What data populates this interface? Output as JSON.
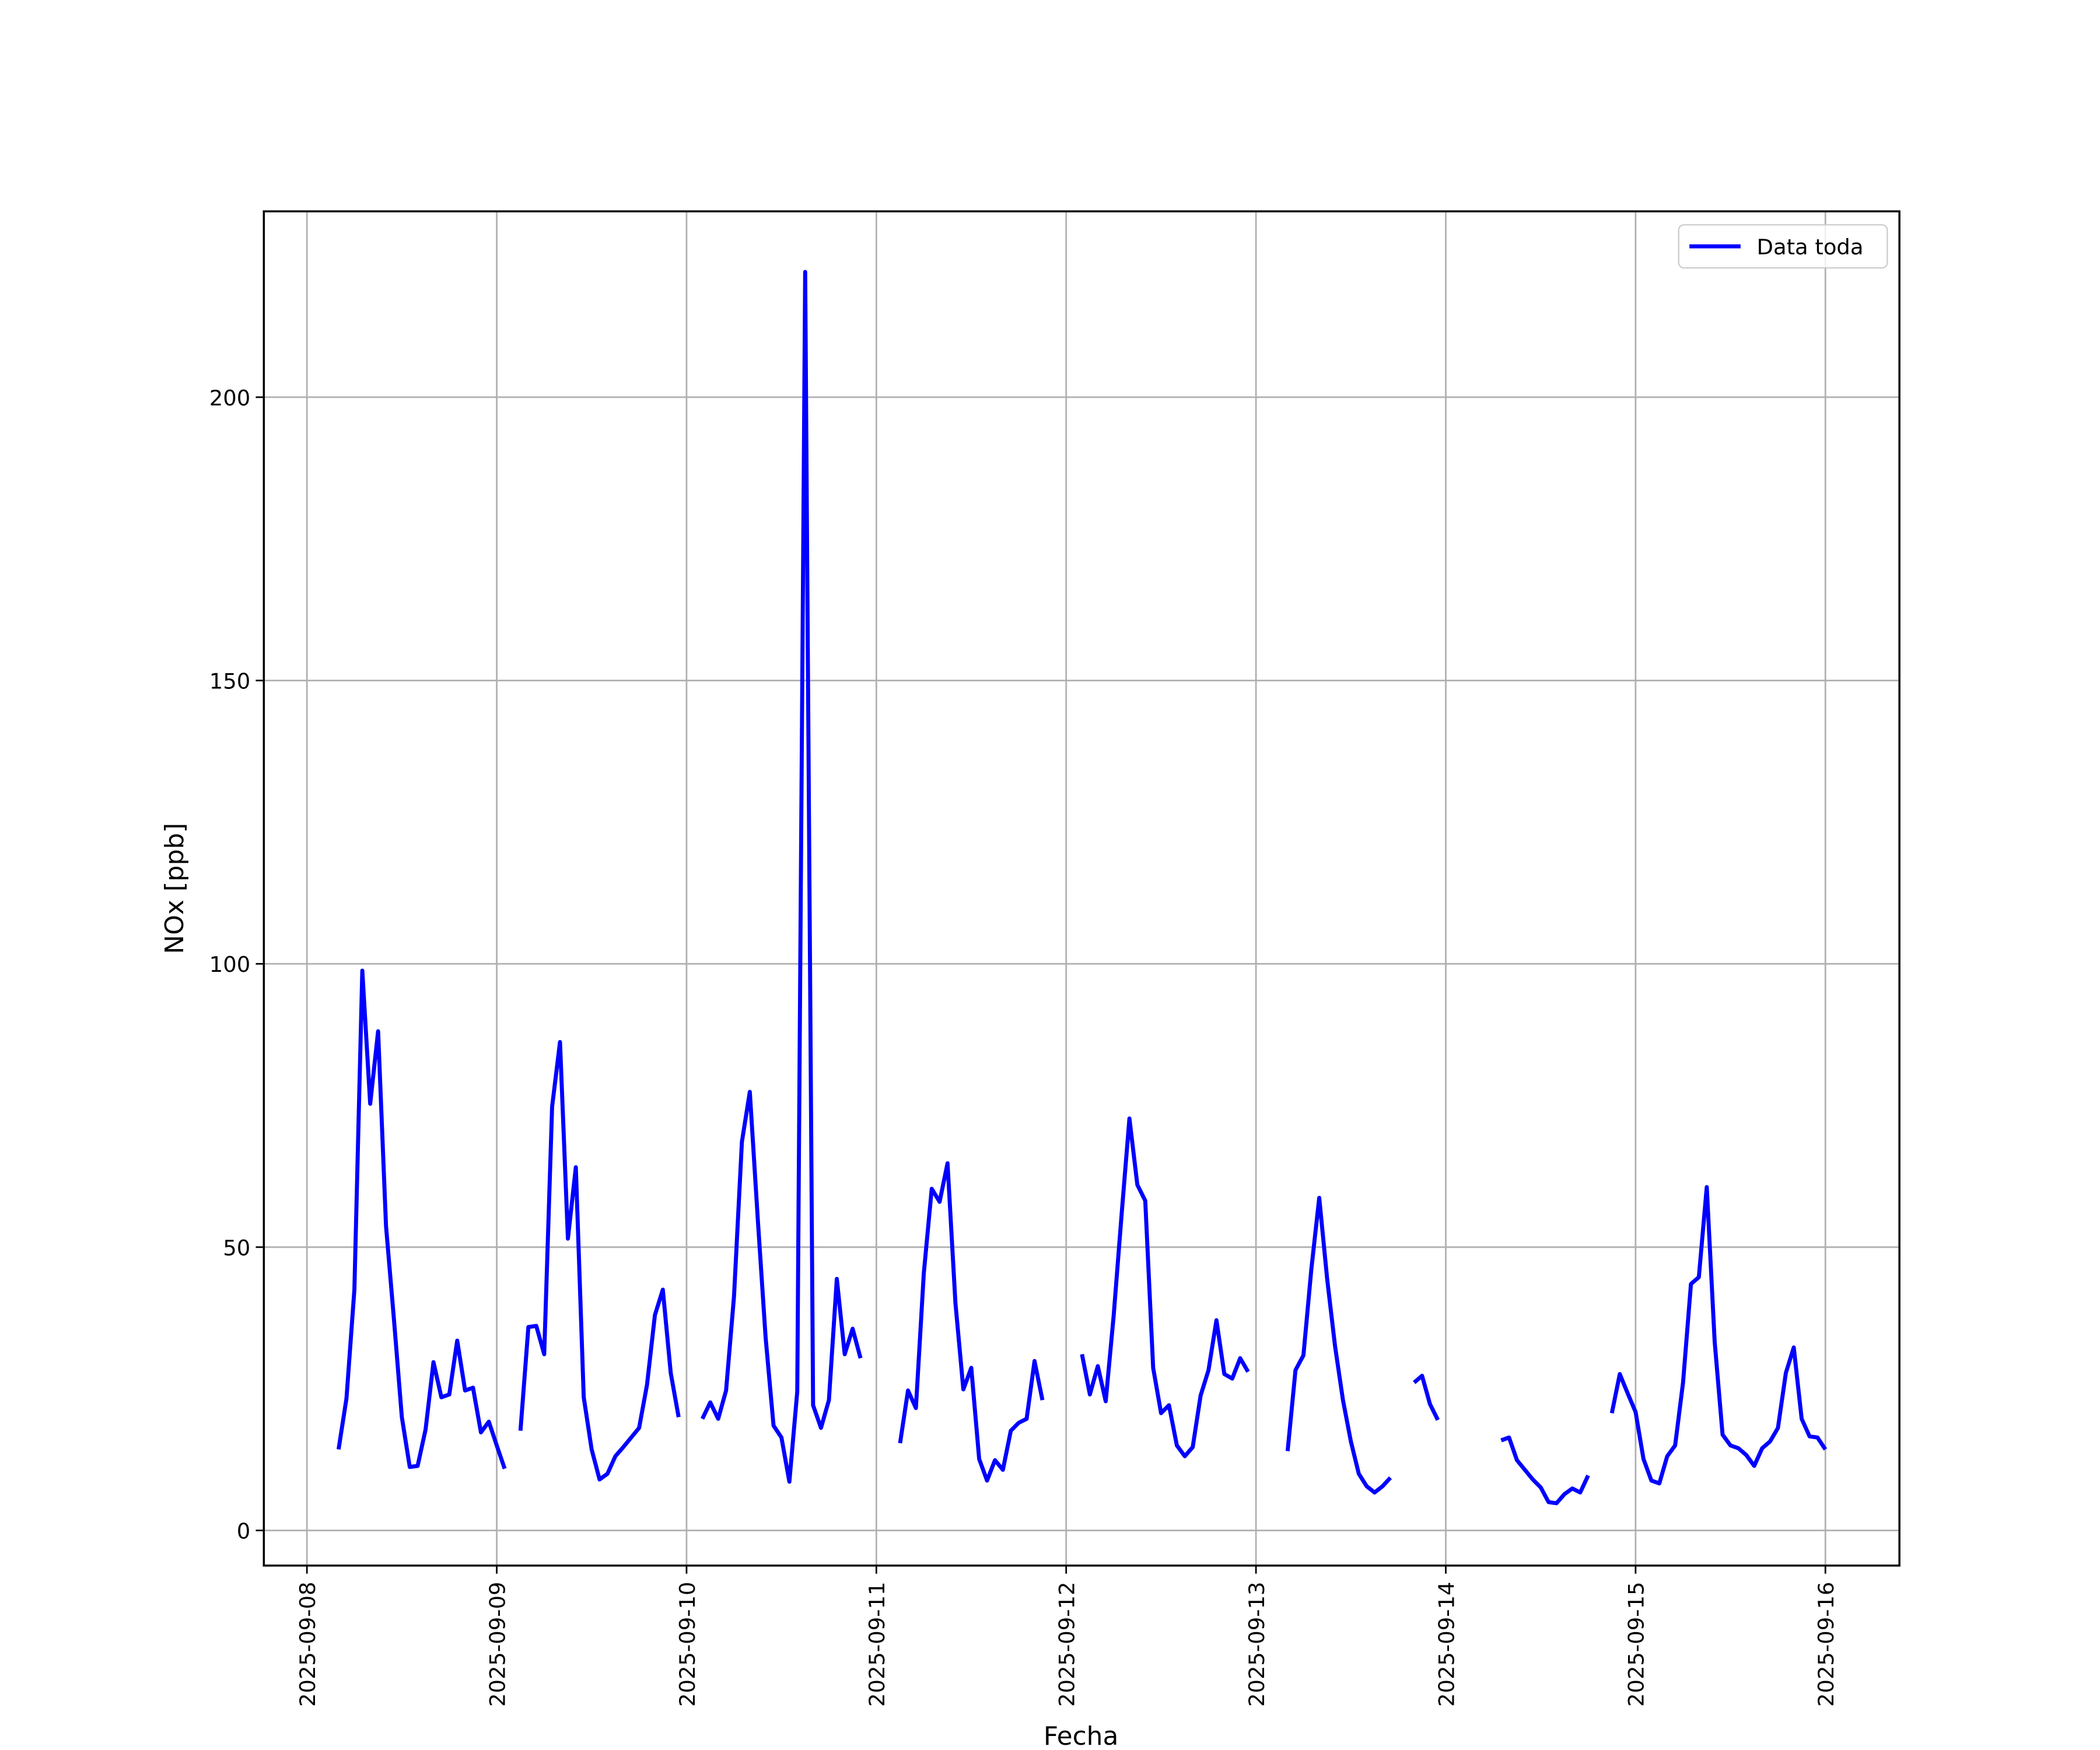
{
  "chart_data": {
    "type": "line",
    "xlabel": "Fecha",
    "ylabel": "NOx [ppb]",
    "xlim": [
      -0.227,
      8.39
    ],
    "ylim": [
      -6.2,
      232.8
    ],
    "xticks": [
      {
        "value": 0,
        "label": "2025-09-08"
      },
      {
        "value": 1,
        "label": "2025-09-09"
      },
      {
        "value": 2,
        "label": "2025-09-10"
      },
      {
        "value": 3,
        "label": "2025-09-11"
      },
      {
        "value": 4,
        "label": "2025-09-12"
      },
      {
        "value": 5,
        "label": "2025-09-13"
      },
      {
        "value": 6,
        "label": "2025-09-14"
      },
      {
        "value": 7,
        "label": "2025-09-15"
      },
      {
        "value": 8,
        "label": "2025-09-16"
      }
    ],
    "yticks": [
      0,
      50,
      100,
      150,
      200
    ],
    "grid": true,
    "legend": "upper right",
    "x": [
      0.1667,
      0.2083,
      0.25,
      0.2917,
      0.3333,
      0.375,
      0.4167,
      0.4583,
      0.5,
      0.5417,
      0.5833,
      0.625,
      0.6667,
      0.7083,
      0.75,
      0.7917,
      0.8333,
      0.875,
      0.9167,
      0.9583,
      1,
      1.0417,
      1.0833,
      1.125,
      1.1667,
      1.2083,
      1.25,
      1.2917,
      1.3333,
      1.375,
      1.4167,
      1.4583,
      1.5,
      1.5417,
      1.5833,
      1.625,
      1.6667,
      1.7083,
      1.75,
      1.7917,
      1.8333,
      1.875,
      1.9167,
      1.9583,
      2,
      2.0833,
      2.125,
      2.1667,
      2.2083,
      2.25,
      2.2917,
      2.3333,
      2.375,
      2.4167,
      2.4583,
      2.5,
      2.5417,
      2.5833,
      2.625,
      2.6667,
      2.7083,
      2.75,
      2.7917,
      2.8333,
      2.875,
      2.9167,
      2.9583,
      3.125,
      3.1667,
      3.2083,
      3.25,
      3.2917,
      3.3333,
      3.375,
      3.4167,
      3.4583,
      3.5,
      3.5417,
      3.5833,
      3.625,
      3.6667,
      3.7083,
      3.75,
      3.7917,
      3.8333,
      3.875,
      3.9167,
      4.0833,
      4.125,
      4.1667,
      4.2083,
      4.25,
      4.2917,
      4.3333,
      4.375,
      4.4167,
      4.4583,
      4.5,
      4.5417,
      4.5833,
      4.625,
      4.6667,
      4.7083,
      4.75,
      4.7917,
      4.8333,
      4.875,
      4.9167,
      4.9583,
      5,
      5.1667,
      5.2083,
      5.25,
      5.2917,
      5.3333,
      5.375,
      5.4167,
      5.4583,
      5.5,
      5.5417,
      5.5833,
      5.625,
      5.6667,
      5.7083,
      5.75,
      5.8333,
      5.875,
      5.9167,
      5.9583,
      6,
      6.2917,
      6.3333,
      6.375,
      6.4167,
      6.4583,
      6.5,
      6.5417,
      6.5833,
      6.625,
      6.6667,
      6.7083,
      6.75,
      6.7917,
      6.875,
      6.9167,
      6.9583,
      7,
      7.0417,
      7.0833,
      7.125,
      7.1667,
      7.2083,
      7.25,
      7.2917,
      7.3333,
      7.375,
      7.4167,
      7.4583,
      7.5,
      7.5417,
      7.5833,
      7.625,
      7.6667,
      7.7083,
      7.75,
      7.7917,
      7.8333,
      7.875,
      7.9167,
      7.9583,
      8
    ],
    "series": [
      {
        "name": "Data toda",
        "color": "#0000ff",
        "values": [
          14.3,
          23.3,
          42.5,
          98.8,
          75.3,
          88.1,
          53.7,
          37.3,
          20,
          11.2,
          11.4,
          17.8,
          29.7,
          23.5,
          24,
          33.5,
          24.7,
          25.2,
          17.3,
          19.2,
          15,
          10.9,
          null,
          17.6,
          35.9,
          36.1,
          31.1,
          74.8,
          86.2,
          51.5,
          64.1,
          23.5,
          14.3,
          9,
          10,
          13.1,
          14.7,
          16.4,
          18.1,
          25.7,
          38,
          42.5,
          27.8,
          20,
          null,
          19.7,
          22.6,
          19.7,
          24.7,
          41.3,
          68.6,
          77.4,
          55.1,
          34,
          18.5,
          16.4,
          8.6,
          24.5,
          222.1,
          22.1,
          18.1,
          23,
          44.4,
          31.1,
          35.6,
          30.4,
          null,
          15.4,
          24.7,
          21.6,
          45.4,
          60.3,
          58,
          64.8,
          40.1,
          24.9,
          28.7,
          12.6,
          8.8,
          12.4,
          10.7,
          17.6,
          19,
          19.7,
          29.9,
          23,
          null,
          31.1,
          24,
          29,
          22.8,
          37.8,
          55.6,
          72.7,
          61,
          58.2,
          28.7,
          20.7,
          22.1,
          15,
          13.1,
          14.7,
          23.8,
          28.3,
          37.1,
          27.6,
          26.8,
          30.4,
          28,
          null,
          14,
          28.3,
          30.9,
          46.1,
          58.7,
          44.4,
          32.5,
          23,
          15.7,
          10,
          7.8,
          6.7,
          7.8,
          9.3,
          null,
          26.1,
          27.3,
          22.3,
          19.5,
          null,
          15.9,
          16.4,
          12.4,
          10.7,
          9,
          7.6,
          5,
          4.8,
          6.4,
          7.4,
          6.7,
          9.7,
          null,
          20.7,
          27.6,
          24.2,
          20.9,
          12.6,
          8.8,
          8.3,
          13.1,
          15,
          26.1,
          43.5,
          44.7,
          60.6,
          33.3,
          16.9,
          15,
          14.5,
          13.3,
          11.4,
          14.5,
          15.7,
          18.1,
          27.8,
          32.3,
          19.7,
          16.6,
          16.4,
          14.3
        ]
      }
    ]
  }
}
